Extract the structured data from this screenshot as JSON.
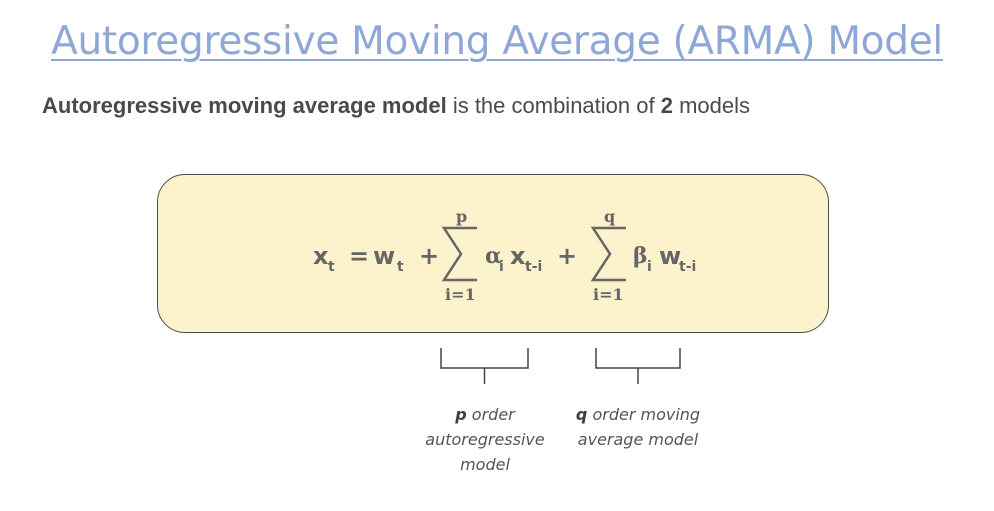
{
  "title": "Autoregressive Moving Average (ARMA) Model",
  "subtitle": {
    "bold_term": "Autoregressive moving average model",
    "mid_text": " is the combination of ",
    "count": "2",
    "end_text": " models"
  },
  "formula": {
    "lhs_var": "x",
    "lhs_sub": "t",
    "equals": "=",
    "w_var": "w",
    "w_sub": "t",
    "plus1": "+",
    "sum1_upper": "p",
    "sum1_lower": "i=1",
    "alpha": "α",
    "alpha_sub": "i",
    "x_var": "x",
    "x_sub": "t-i",
    "plus2": "+",
    "sum2_upper": "q",
    "sum2_lower": "i=1",
    "beta": "β",
    "beta_sub": "i",
    "w2_var": "w",
    "w2_sub": "t-i"
  },
  "labels": {
    "ar": {
      "order_symbol": "p",
      "line1_rest": " order",
      "line2": "autoregressive",
      "line3": "model"
    },
    "ma": {
      "order_symbol": "q",
      "line1_rest": " order moving",
      "line2": "average model"
    }
  },
  "colors": {
    "title": "#8fa7d7",
    "box_fill": "#fcf2cc",
    "box_border": "#4e4e4e",
    "formula_text": "#666666"
  }
}
